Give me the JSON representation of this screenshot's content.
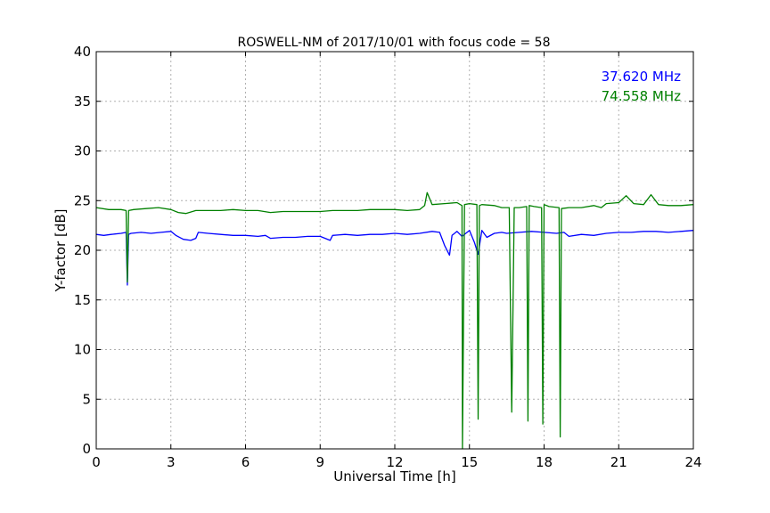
{
  "chart_data": {
    "type": "line",
    "title": "ROSWELL-NM of 2017/10/01 with focus code = 58",
    "xlabel": "Universal Time [h]",
    "ylabel": "Y-factor [dB]",
    "xlim": [
      0,
      24
    ],
    "ylim": [
      0,
      40
    ],
    "xticks": [
      0,
      3,
      6,
      9,
      12,
      15,
      18,
      21,
      24
    ],
    "yticks": [
      0,
      5,
      10,
      15,
      20,
      25,
      30,
      35,
      40
    ],
    "grid": true,
    "legend_placement": "top-right",
    "series": [
      {
        "name": "37.620 MHz",
        "color": "#0000ff",
        "x": [
          0,
          0.3,
          0.6,
          1.0,
          1.2,
          1.25,
          1.3,
          1.4,
          1.8,
          2.2,
          2.6,
          3.0,
          3.2,
          3.5,
          3.8,
          4.0,
          4.1,
          4.5,
          5.0,
          5.5,
          6.0,
          6.5,
          6.8,
          7.0,
          7.5,
          8.0,
          8.5,
          9.0,
          9.4,
          9.5,
          10.0,
          10.5,
          11.0,
          11.5,
          12.0,
          12.5,
          13.0,
          13.5,
          13.8,
          14.0,
          14.2,
          14.3,
          14.5,
          14.7,
          15.0,
          15.2,
          15.35,
          15.5,
          15.7,
          16.0,
          16.3,
          16.5,
          17.0,
          17.5,
          18.0,
          18.5,
          18.8,
          19.0,
          19.5,
          20.0,
          20.5,
          21.0,
          21.5,
          22.0,
          22.5,
          23.0,
          23.5,
          24.0
        ],
        "y": [
          21.6,
          21.5,
          21.6,
          21.7,
          21.8,
          16.5,
          21.6,
          21.7,
          21.8,
          21.7,
          21.8,
          21.9,
          21.5,
          21.1,
          21.0,
          21.2,
          21.8,
          21.7,
          21.6,
          21.5,
          21.5,
          21.4,
          21.5,
          21.2,
          21.3,
          21.3,
          21.4,
          21.4,
          21.0,
          21.5,
          21.6,
          21.5,
          21.6,
          21.6,
          21.7,
          21.6,
          21.7,
          21.9,
          21.8,
          20.5,
          19.5,
          21.5,
          21.9,
          21.4,
          22.0,
          20.8,
          19.6,
          22.0,
          21.3,
          21.7,
          21.8,
          21.7,
          21.8,
          21.9,
          21.8,
          21.7,
          21.8,
          21.4,
          21.6,
          21.5,
          21.7,
          21.8,
          21.8,
          21.9,
          21.9,
          21.8,
          21.9,
          22.0
        ]
      },
      {
        "name": "74.558 MHz",
        "color": "#008000",
        "x": [
          0,
          0.5,
          1.0,
          1.2,
          1.25,
          1.3,
          1.5,
          2.0,
          2.5,
          3.0,
          3.3,
          3.6,
          4.0,
          4.5,
          5.0,
          5.5,
          6.0,
          6.5,
          7.0,
          7.5,
          8.0,
          8.5,
          9.0,
          9.5,
          10.0,
          10.5,
          11.0,
          11.5,
          12.0,
          12.5,
          13.0,
          13.2,
          13.3,
          13.5,
          14.0,
          14.5,
          14.7,
          14.72,
          14.8,
          15.0,
          15.3,
          15.35,
          15.4,
          15.5,
          16.0,
          16.3,
          16.6,
          16.7,
          16.8,
          17.0,
          17.3,
          17.35,
          17.4,
          17.6,
          17.9,
          17.95,
          18.0,
          18.2,
          18.6,
          18.65,
          18.7,
          19.0,
          19.5,
          20.0,
          20.3,
          20.5,
          21.0,
          21.3,
          21.6,
          22.0,
          22.3,
          22.6,
          23.0,
          23.5,
          24.0
        ],
        "y": [
          24.3,
          24.1,
          24.1,
          24.0,
          16.8,
          24.0,
          24.1,
          24.2,
          24.3,
          24.1,
          23.8,
          23.7,
          24.0,
          24.0,
          24.0,
          24.1,
          24.0,
          24.0,
          23.8,
          23.9,
          23.9,
          23.9,
          23.9,
          24.0,
          24.0,
          24.0,
          24.1,
          24.1,
          24.1,
          24.0,
          24.1,
          24.5,
          25.8,
          24.6,
          24.7,
          24.8,
          24.5,
          0.0,
          24.6,
          24.7,
          24.6,
          3.0,
          24.5,
          24.6,
          24.5,
          24.3,
          24.3,
          3.7,
          24.3,
          24.3,
          24.4,
          2.8,
          24.5,
          24.4,
          24.3,
          2.5,
          24.6,
          24.4,
          24.3,
          1.2,
          24.2,
          24.3,
          24.3,
          24.5,
          24.3,
          24.7,
          24.8,
          25.5,
          24.7,
          24.6,
          25.6,
          24.6,
          24.5,
          24.5,
          24.6
        ]
      }
    ]
  }
}
